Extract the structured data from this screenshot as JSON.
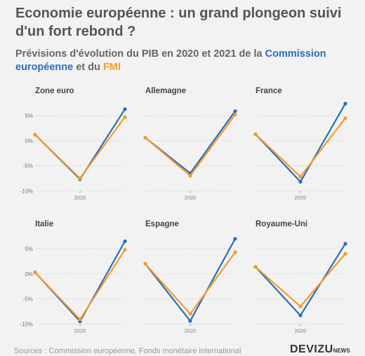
{
  "title": "Economie européenne : un grand plongeon suivi d'un fort rebond ?",
  "subtitle": {
    "part1": "Prévisions d'évolution du PIB en 2020 et 2021 de la ",
    "ec": "Commission européenne",
    "part2": " et du ",
    "fmi": "FMI"
  },
  "colors": {
    "ec": "#2a6ebb",
    "fmi": "#f39c2a"
  },
  "footer": "Sources : Commission européenne, Fonds monétaire international",
  "logo": {
    "main": "DEVIZU",
    "sub": "NEWS"
  },
  "chart_data": [
    {
      "type": "line",
      "title": "Zone euro",
      "x": [
        "2019",
        "2020",
        "2021"
      ],
      "xtick": "2020",
      "yticks": [
        "5%",
        "0%",
        "-5%",
        "-10%"
      ],
      "ylim": [
        -10,
        5
      ],
      "series": [
        {
          "name": "Commission européenne",
          "values": [
            1.2,
            -7.7,
            6.3
          ]
        },
        {
          "name": "FMI",
          "values": [
            1.2,
            -7.5,
            4.7
          ]
        }
      ]
    },
    {
      "type": "line",
      "title": "Allemagne",
      "x": [
        "2019",
        "2020",
        "2021"
      ],
      "xtick": "2020",
      "yticks": [
        "5%",
        "0%",
        "-5%",
        "-10%"
      ],
      "ylim": [
        -10,
        5
      ],
      "series": [
        {
          "name": "Commission européenne",
          "values": [
            0.6,
            -6.5,
            5.9
          ]
        },
        {
          "name": "FMI",
          "values": [
            0.6,
            -7.0,
            5.2
          ]
        }
      ]
    },
    {
      "type": "line",
      "title": "France",
      "x": [
        "2019",
        "2020",
        "2021"
      ],
      "xtick": "2020",
      "yticks": [
        "5%",
        "0%",
        "-5%",
        "-10%"
      ],
      "ylim": [
        -10,
        5
      ],
      "series": [
        {
          "name": "Commission européenne",
          "values": [
            1.3,
            -8.2,
            7.4
          ]
        },
        {
          "name": "FMI",
          "values": [
            1.3,
            -7.2,
            4.5
          ]
        }
      ]
    },
    {
      "type": "line",
      "title": "Italie",
      "x": [
        "2019",
        "2020",
        "2021"
      ],
      "xtick": "2020",
      "yticks": [
        "5%",
        "0%",
        "-5%",
        "-10%"
      ],
      "ylim": [
        -10,
        5
      ],
      "series": [
        {
          "name": "Commission européenne",
          "values": [
            0.3,
            -9.5,
            6.5
          ]
        },
        {
          "name": "FMI",
          "values": [
            0.3,
            -9.1,
            4.8
          ]
        }
      ]
    },
    {
      "type": "line",
      "title": "Espagne",
      "x": [
        "2019",
        "2020",
        "2021"
      ],
      "xtick": "2020",
      "yticks": [
        "5%",
        "0%",
        "-5%",
        "-10%"
      ],
      "ylim": [
        -10,
        5
      ],
      "series": [
        {
          "name": "Commission européenne",
          "values": [
            2.0,
            -9.4,
            7.0
          ]
        },
        {
          "name": "FMI",
          "values": [
            2.0,
            -8.0,
            4.3
          ]
        }
      ]
    },
    {
      "type": "line",
      "title": "Royaume-Uni",
      "x": [
        "2019",
        "2020",
        "2021"
      ],
      "xtick": "2020",
      "yticks": [
        "5%",
        "0%",
        "-5%",
        "-10%"
      ],
      "ylim": [
        -10,
        5
      ],
      "series": [
        {
          "name": "Commission européenne",
          "values": [
            1.4,
            -8.3,
            6.0
          ]
        },
        {
          "name": "FMI",
          "values": [
            1.4,
            -6.5,
            4.0
          ]
        }
      ]
    }
  ]
}
